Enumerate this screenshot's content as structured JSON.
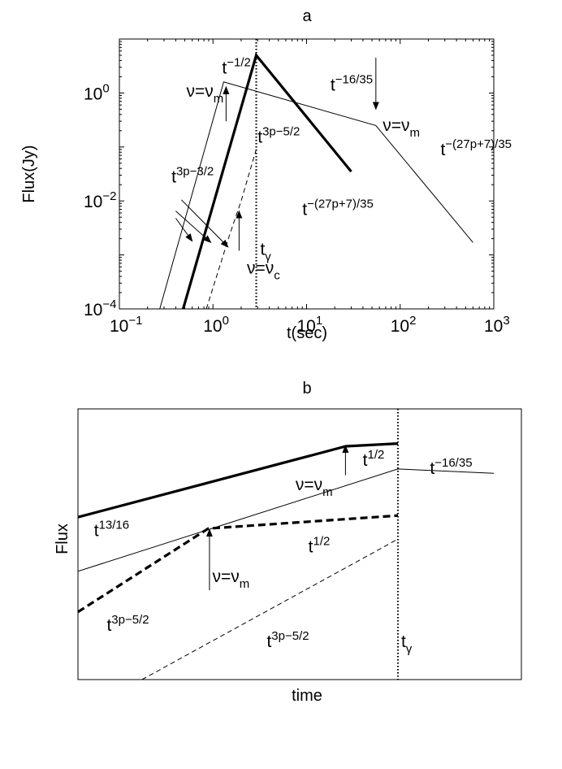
{
  "chart_data": [
    {
      "type": "line",
      "title": "a",
      "xlabel": "t(sec)",
      "ylabel": "Flux(Jy)",
      "xscale": "log",
      "yscale": "log",
      "xlim": [
        0.1,
        1000
      ],
      "ylim": [
        0.0001,
        10
      ],
      "xticks": [
        {
          "value": 0.1,
          "base": "10",
          "exp": "−1"
        },
        {
          "value": 1,
          "base": "10",
          "exp": "0"
        },
        {
          "value": 10,
          "base": "10",
          "exp": "1"
        },
        {
          "value": 100,
          "base": "10",
          "exp": "2"
        },
        {
          "value": 1000,
          "base": "10",
          "exp": "3"
        }
      ],
      "yticks": [
        {
          "value": 0.0001,
          "base": "10",
          "exp": "−4"
        },
        {
          "value": 0.01,
          "base": "10",
          "exp": "−2"
        },
        {
          "value": 1,
          "base": "10",
          "exp": "0"
        }
      ],
      "grid": false,
      "series": [
        {
          "style": "thick",
          "x": [
            0.48,
            2.9,
            30
          ],
          "y": [
            0.0001,
            5.0,
            0.035
          ]
        },
        {
          "style": "thin",
          "x": [
            0.27,
            1.3,
            55,
            600
          ],
          "y": [
            0.0001,
            1.6,
            0.25,
            0.0017
          ]
        },
        {
          "style": "dashed",
          "x": [
            0.85,
            1.5,
            2.0,
            2.9
          ],
          "y": [
            0.0001,
            0.0023,
            0.01,
            0.09
          ]
        }
      ],
      "vline": {
        "x": 2.9,
        "style": "dotted"
      },
      "annotations": [
        {
          "base": "t",
          "exp": "−1/2",
          "x": 1.25,
          "y": 2.3
        },
        {
          "base": "t",
          "exp": "−16/35",
          "x": 18,
          "y": 1.1
        },
        {
          "base": "t",
          "exp": "3p−5/2",
          "x": 3.0,
          "y": 0.12
        },
        {
          "base": "t",
          "exp": "−(27p+7)/35",
          "x": 9,
          "y": 0.0055
        },
        {
          "base": "t",
          "exp": "−(27p+7)/35",
          "x": 270,
          "y": 0.07
        },
        {
          "base": "t",
          "exp": "3p−3/2",
          "x": 0.36,
          "y": 0.022
        },
        {
          "base": "ν=ν",
          "sub": "m",
          "x": 0.52,
          "y": 0.85
        },
        {
          "base": "ν=ν",
          "sub": "m",
          "x": 65,
          "y": 0.2
        },
        {
          "base": "ν=ν",
          "sub": "c",
          "x": 2.3,
          "y": 0.00045
        },
        {
          "base": "t",
          "sub": "γ",
          "x": 3.2,
          "y": 0.001
        }
      ],
      "arrows": [
        {
          "x1": 1.38,
          "y1": 0.3,
          "x2": 1.38,
          "y2": 1.3
        },
        {
          "x1": 1.9,
          "y1": 0.0012,
          "x2": 1.9,
          "y2": 0.0065
        },
        {
          "x1": 55,
          "y1": 4.5,
          "x2": 55,
          "y2": 0.5
        },
        {
          "x1": 0.4,
          "y1": 0.0048,
          "x2": 0.6,
          "y2": 0.0018
        },
        {
          "x1": 0.4,
          "y1": 0.0065,
          "x2": 0.95,
          "y2": 0.0017
        },
        {
          "x1": 0.46,
          "y1": 0.0105,
          "x2": 1.45,
          "y2": 0.0014
        }
      ]
    },
    {
      "type": "line",
      "title": "b",
      "xlabel": "time",
      "ylabel": "Flux",
      "xlim": [
        0,
        1
      ],
      "ylim": [
        0,
        1
      ],
      "series": [
        {
          "style": "thick",
          "x": [
            0,
            0.837,
            1.0
          ],
          "y": [
            0.6,
            0.862,
            0.872
          ]
        },
        {
          "style": "thin",
          "x": [
            0,
            1.0,
            1.3
          ],
          "y": [
            0.4,
            0.778,
            0.762
          ]
        },
        {
          "style": "thick-dashed",
          "x": [
            0,
            0.407,
            1.0
          ],
          "y": [
            0.25,
            0.558,
            0.606
          ]
        },
        {
          "style": "dashed",
          "x": [
            0.2,
            1.0
          ],
          "y": [
            0.0,
            0.519
          ]
        }
      ],
      "vline": {
        "x": 1.0,
        "style": "dotted"
      },
      "annotations": [
        {
          "base": "t",
          "exp": "1/2",
          "x": 0.89,
          "y": 0.79
        },
        {
          "base": "t",
          "exp": "−16/35",
          "x": 1.1,
          "y": 0.76
        },
        {
          "base": "ν=ν",
          "sub": "m",
          "x": 0.68,
          "y": 0.7
        },
        {
          "base": "t",
          "exp": "13/16",
          "x": 0.05,
          "y": 0.53
        },
        {
          "base": "t",
          "exp": "1/2",
          "x": 0.72,
          "y": 0.47
        },
        {
          "base": "ν=ν",
          "sub": "m",
          "x": 0.42,
          "y": 0.36
        },
        {
          "base": "t",
          "exp": "3p−5/2",
          "x": 0.09,
          "y": 0.18
        },
        {
          "base": "t",
          "exp": "3p−5/2",
          "x": 0.59,
          "y": 0.12
        },
        {
          "base": "t",
          "sub": "γ",
          "x": 1.01,
          "y": 0.12
        }
      ],
      "arrows": [
        {
          "x1": 0.836,
          "y1": 0.755,
          "x2": 0.836,
          "y2": 0.865
        },
        {
          "x1": 0.411,
          "y1": 0.33,
          "x2": 0.411,
          "y2": 0.555
        }
      ]
    }
  ]
}
